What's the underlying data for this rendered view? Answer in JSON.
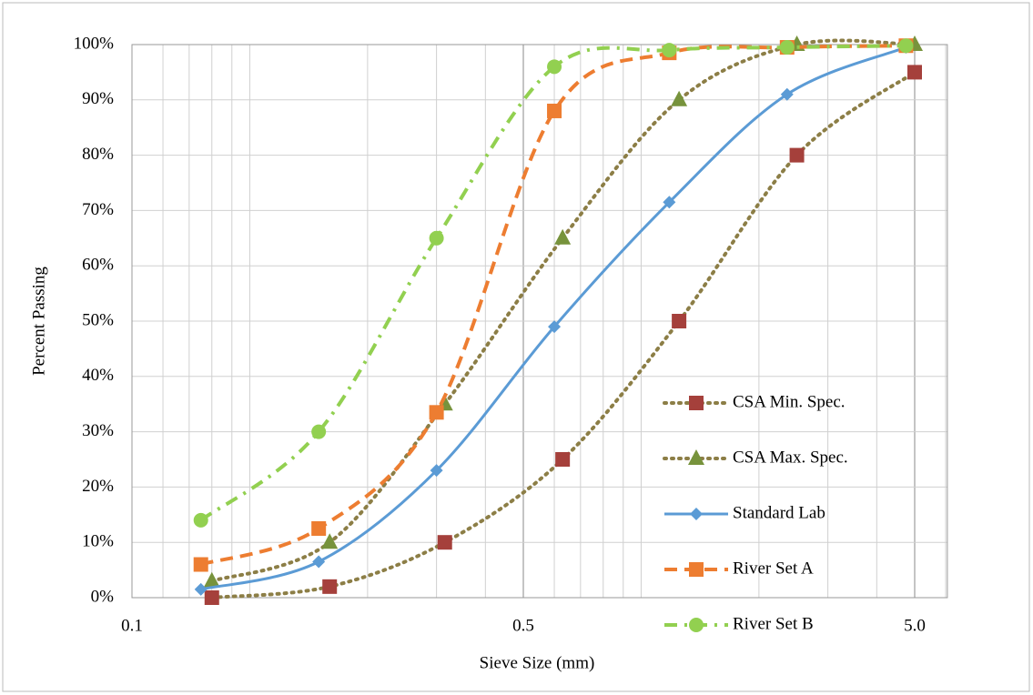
{
  "chart_data": {
    "type": "line",
    "x_label": "Sieve Size (mm)",
    "y_label": "Percent Passing",
    "xscale": "log",
    "grid": true,
    "legend": "lower-right",
    "xlim": [
      0.05,
      6.06
    ],
    "xticks": [
      {
        "value": 0.05,
        "label": "0.1"
      },
      0.5,
      {
        "value": 5,
        "label": "5.0"
      }
    ],
    "x_minor_grid": [
      0.06,
      0.07,
      0.08,
      0.09,
      0.1,
      0.2,
      0.3,
      0.4,
      0.6,
      0.7,
      0.8,
      0.9,
      1,
      2,
      3,
      4,
      6
    ],
    "ylim": [
      0,
      100
    ],
    "yticks": [
      {
        "value": 0,
        "label": "0%"
      },
      {
        "value": 10,
        "label": "10%"
      },
      {
        "value": 20,
        "label": "20%"
      },
      {
        "value": 30,
        "label": "30%"
      },
      {
        "value": 40,
        "label": "40%"
      },
      {
        "value": 50,
        "label": "50%"
      },
      {
        "value": 60,
        "label": "60%"
      },
      {
        "value": 70,
        "label": "70%"
      },
      {
        "value": 80,
        "label": "80%"
      },
      {
        "value": 90,
        "label": "90%"
      },
      {
        "value": 100,
        "label": "100%"
      }
    ],
    "series": [
      {
        "name": "CSA Min. Spec.",
        "color": "#8c7e46",
        "marker_color": "#a5403b",
        "marker": "square",
        "dash": "dot",
        "x": [
          0.08,
          0.16,
          0.315,
          0.63,
          1.25,
          2.5,
          5
        ],
        "values": [
          0,
          2,
          10,
          25,
          50,
          80,
          95
        ]
      },
      {
        "name": "CSA Max. Spec.",
        "color": "#8c7e46",
        "marker_color": "#77933c",
        "marker": "triangle",
        "dash": "dot",
        "x": [
          0.08,
          0.16,
          0.315,
          0.63,
          1.25,
          2.5,
          5
        ],
        "values": [
          3,
          10,
          35,
          65,
          90,
          100,
          100
        ]
      },
      {
        "name": "Standard Lab",
        "color": "#5b9bd5",
        "marker_color": "#5b9bd5",
        "marker": "diamond",
        "dash": "solid",
        "x": [
          0.075,
          0.15,
          0.3,
          0.6,
          1.18,
          2.36,
          4.75
        ],
        "values": [
          1.5,
          6.5,
          23,
          49,
          71.5,
          91,
          99.5
        ]
      },
      {
        "name": "River Set A",
        "color": "#ed7d31",
        "marker_color": "#ed7d31",
        "marker": "square",
        "dash": "dash",
        "x": [
          0.075,
          0.15,
          0.3,
          0.6,
          1.18,
          2.36,
          4.75
        ],
        "values": [
          6,
          12.5,
          33.5,
          88,
          98.5,
          99.5,
          99.8
        ]
      },
      {
        "name": "River Set B",
        "color": "#92d050",
        "marker_color": "#92d050",
        "marker": "circle",
        "dash": "dashdot",
        "x": [
          0.075,
          0.15,
          0.3,
          0.6,
          1.18,
          2.36,
          4.75
        ],
        "values": [
          14,
          30,
          65,
          96,
          99,
          99.5,
          99.8
        ]
      }
    ]
  }
}
